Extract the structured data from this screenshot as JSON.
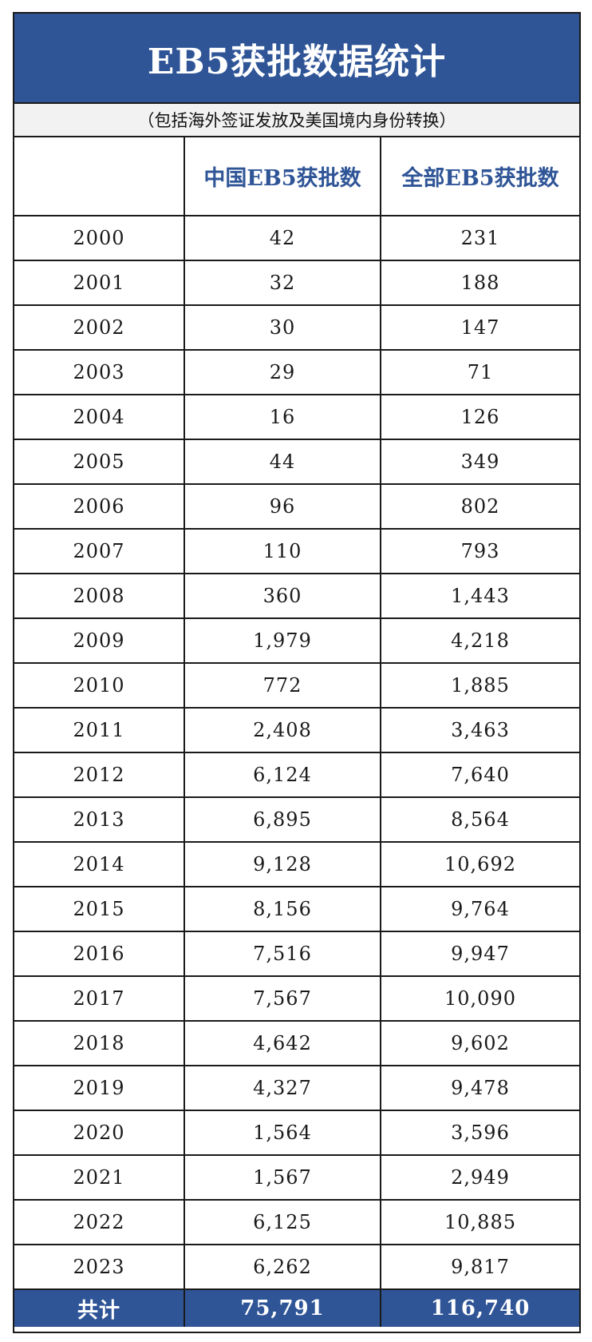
{
  "title": "EB5获批数据统计",
  "subtitle": "（包括海外签证发放及美国境内身份转换）",
  "table": {
    "columns": [
      "",
      "中国EB5获批数",
      "全部EB5获批数"
    ],
    "rows": [
      [
        "2000",
        "42",
        "231"
      ],
      [
        "2001",
        "32",
        "188"
      ],
      [
        "2002",
        "30",
        "147"
      ],
      [
        "2003",
        "29",
        "71"
      ],
      [
        "2004",
        "16",
        "126"
      ],
      [
        "2005",
        "44",
        "349"
      ],
      [
        "2006",
        "96",
        "802"
      ],
      [
        "2007",
        "110",
        "793"
      ],
      [
        "2008",
        "360",
        "1,443"
      ],
      [
        "2009",
        "1,979",
        "4,218"
      ],
      [
        "2010",
        "772",
        "1,885"
      ],
      [
        "2011",
        "2,408",
        "3,463"
      ],
      [
        "2012",
        "6,124",
        "7,640"
      ],
      [
        "2013",
        "6,895",
        "8,564"
      ],
      [
        "2014",
        "9,128",
        "10,692"
      ],
      [
        "2015",
        "8,156",
        "9,764"
      ],
      [
        "2016",
        "7,516",
        "9,947"
      ],
      [
        "2017",
        "7,567",
        "10,090"
      ],
      [
        "2018",
        "4,642",
        "9,602"
      ],
      [
        "2019",
        "4,327",
        "9,478"
      ],
      [
        "2020",
        "1,564",
        "3,596"
      ],
      [
        "2021",
        "1,567",
        "2,949"
      ],
      [
        "2022",
        "6,125",
        "10,885"
      ],
      [
        "2023",
        "6,262",
        "9,817"
      ]
    ],
    "total": [
      "共计",
      "75,791",
      "116,740"
    ]
  },
  "colors": {
    "header_blue": "#2f5597",
    "subtitle_bg": "#f2f2f2",
    "border": "#1a1a1a"
  }
}
